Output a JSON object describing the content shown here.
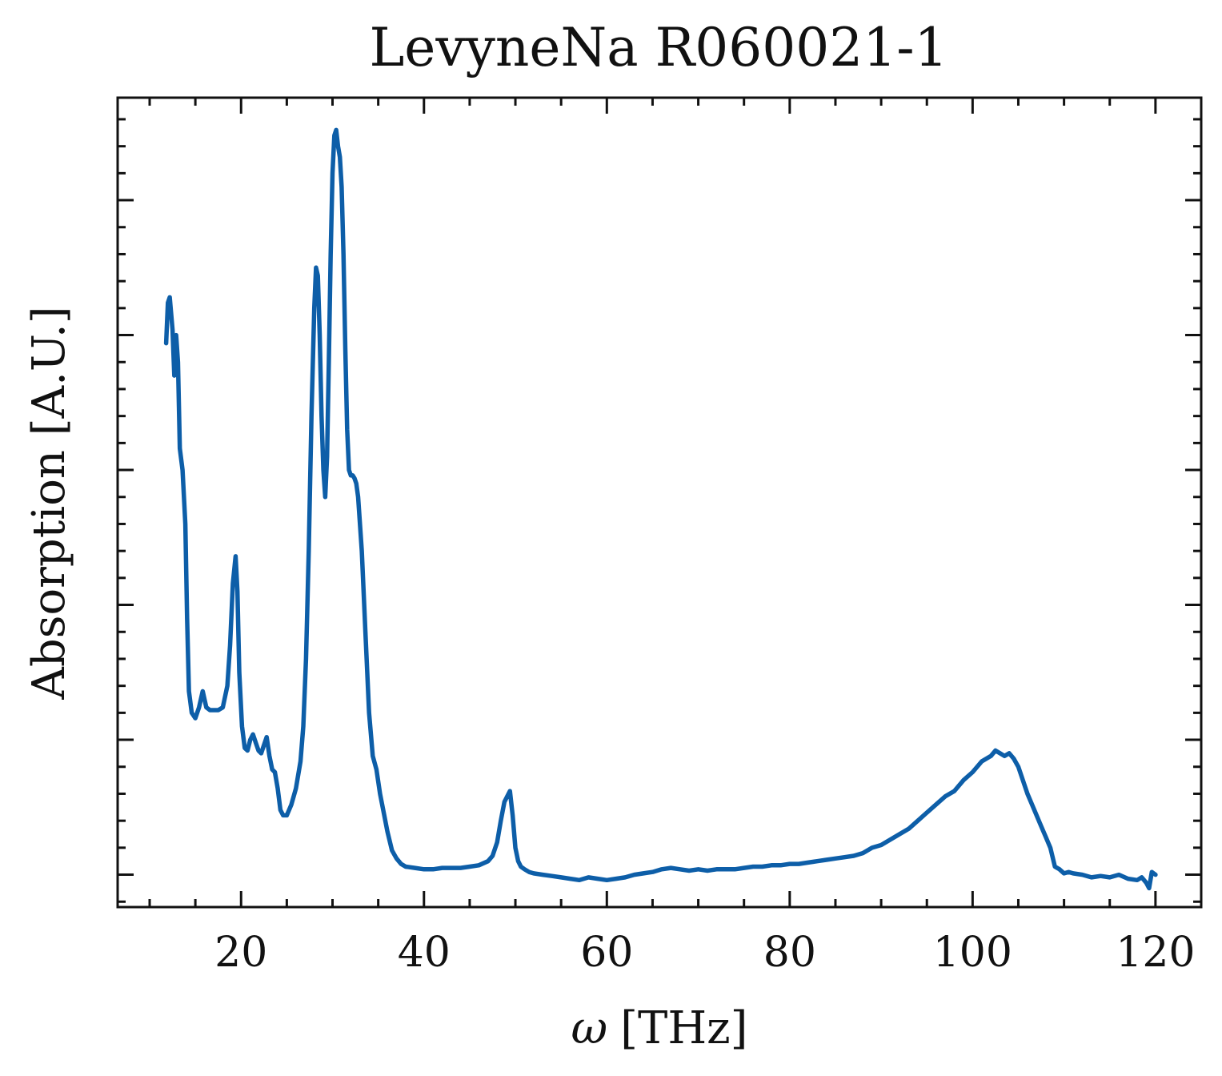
{
  "chart_data": {
    "type": "line",
    "title": "LevyneNa R060021-1",
    "xlabel_symbol": "ω",
    "xlabel_unit": "[THz]",
    "ylabel": "Absorption [A.U.]",
    "xlim": [
      6.5,
      125
    ],
    "ylim": [
      -0.12,
      2.88
    ],
    "x_ticks": [
      20,
      40,
      60,
      80,
      100,
      120
    ],
    "x_tick_labels": [
      "20",
      "40",
      "60",
      "80",
      "100",
      "120"
    ],
    "y_ticks": [
      0,
      0.5,
      1.0,
      1.5,
      2.0,
      2.5
    ],
    "y_minor_step": 0.1,
    "x_minor_step": 5,
    "grid": false,
    "legend": "none",
    "colors": {
      "series": "#0d5ea8",
      "axis": "#111111"
    },
    "series": [
      {
        "x": [
          11.8,
          12.0,
          12.2,
          12.5,
          12.7,
          12.9,
          13.1,
          13.3,
          13.6,
          13.9,
          14.1,
          14.3,
          14.6,
          15.0,
          15.4,
          15.8,
          16.2,
          16.6,
          17.0,
          17.5,
          18.0,
          18.5,
          18.8,
          19.1,
          19.4,
          19.6,
          19.8,
          20.1,
          20.4,
          20.7,
          21.0,
          21.3,
          21.6,
          21.9,
          22.2,
          22.5,
          22.8,
          23.1,
          23.4,
          23.7,
          24.0,
          24.3,
          24.6,
          25.0,
          25.5,
          26.0,
          26.5,
          26.8,
          27.1,
          27.4,
          27.7,
          28.0,
          28.2,
          28.4,
          28.6,
          28.8,
          29.0,
          29.2,
          29.4,
          29.6,
          29.8,
          30.0,
          30.2,
          30.4,
          30.6,
          30.8,
          31.0,
          31.2,
          31.4,
          31.6,
          31.8,
          32.0,
          32.2,
          32.4,
          32.6,
          32.8,
          33.2,
          33.6,
          34.0,
          34.4,
          34.8,
          35.2,
          35.6,
          36.0,
          36.5,
          37.0,
          37.5,
          38.0,
          39.0,
          40.0,
          41.0,
          42.0,
          43.0,
          44.0,
          45.0,
          46.0,
          47.0,
          47.5,
          48.0,
          48.4,
          48.8,
          49.1,
          49.4,
          49.7,
          50.0,
          50.3,
          50.6,
          51.0,
          51.5,
          52.0,
          53.0,
          54.0,
          55.0,
          56.0,
          57.0,
          58.0,
          59.0,
          60.0,
          61.0,
          62.0,
          63.0,
          64.0,
          65.0,
          66.0,
          67.0,
          68.0,
          69.0,
          70.0,
          71.0,
          72.0,
          73.0,
          74.0,
          75.0,
          76.0,
          77.0,
          78.0,
          79.0,
          80.0,
          81.0,
          82.0,
          83.0,
          84.0,
          85.0,
          86.0,
          87.0,
          88.0,
          89.0,
          90.0,
          91.0,
          92.0,
          93.0,
          94.0,
          95.0,
          96.0,
          97.0,
          98.0,
          99.0,
          100.0,
          101.0,
          102.0,
          102.5,
          103.0,
          103.5,
          104.0,
          104.5,
          105.0,
          105.5,
          106.0,
          106.5,
          107.0,
          107.5,
          108.0,
          108.5,
          109.0,
          109.5,
          110.0,
          110.5,
          111.0,
          112.0,
          113.0,
          114.0,
          115.0,
          116.0,
          117.0,
          118.0,
          118.5,
          119.0,
          119.3,
          119.6,
          120.0
        ],
        "y": [
          1.97,
          2.12,
          2.14,
          2.02,
          1.85,
          2.0,
          1.9,
          1.58,
          1.5,
          1.3,
          0.95,
          0.68,
          0.6,
          0.58,
          0.62,
          0.68,
          0.62,
          0.61,
          0.61,
          0.61,
          0.62,
          0.7,
          0.85,
          1.08,
          1.18,
          1.05,
          0.75,
          0.55,
          0.47,
          0.46,
          0.5,
          0.52,
          0.49,
          0.46,
          0.45,
          0.48,
          0.51,
          0.44,
          0.39,
          0.38,
          0.32,
          0.24,
          0.22,
          0.22,
          0.26,
          0.32,
          0.42,
          0.55,
          0.8,
          1.2,
          1.7,
          2.1,
          2.25,
          2.22,
          2.0,
          1.7,
          1.5,
          1.4,
          1.55,
          1.9,
          2.3,
          2.6,
          2.74,
          2.76,
          2.7,
          2.66,
          2.55,
          2.3,
          1.95,
          1.65,
          1.5,
          1.48,
          1.48,
          1.47,
          1.45,
          1.4,
          1.2,
          0.9,
          0.6,
          0.44,
          0.39,
          0.3,
          0.23,
          0.16,
          0.09,
          0.06,
          0.04,
          0.03,
          0.025,
          0.02,
          0.02,
          0.025,
          0.025,
          0.025,
          0.03,
          0.035,
          0.05,
          0.07,
          0.12,
          0.2,
          0.27,
          0.29,
          0.31,
          0.22,
          0.1,
          0.05,
          0.03,
          0.02,
          0.01,
          0.005,
          0.0,
          -0.005,
          -0.01,
          -0.015,
          -0.02,
          -0.01,
          -0.015,
          -0.02,
          -0.015,
          -0.01,
          0.0,
          0.005,
          0.01,
          0.02,
          0.025,
          0.02,
          0.015,
          0.02,
          0.015,
          0.02,
          0.02,
          0.02,
          0.025,
          0.03,
          0.03,
          0.035,
          0.035,
          0.04,
          0.04,
          0.045,
          0.05,
          0.055,
          0.06,
          0.065,
          0.07,
          0.08,
          0.1,
          0.11,
          0.13,
          0.15,
          0.17,
          0.2,
          0.23,
          0.26,
          0.29,
          0.31,
          0.35,
          0.38,
          0.42,
          0.44,
          0.46,
          0.45,
          0.44,
          0.45,
          0.43,
          0.4,
          0.35,
          0.3,
          0.26,
          0.22,
          0.18,
          0.14,
          0.1,
          0.03,
          0.02,
          0.005,
          0.01,
          0.005,
          0.0,
          -0.01,
          -0.005,
          -0.01,
          0.0,
          -0.015,
          -0.02,
          -0.01,
          -0.03,
          -0.05,
          0.01,
          0.0
        ]
      }
    ]
  }
}
